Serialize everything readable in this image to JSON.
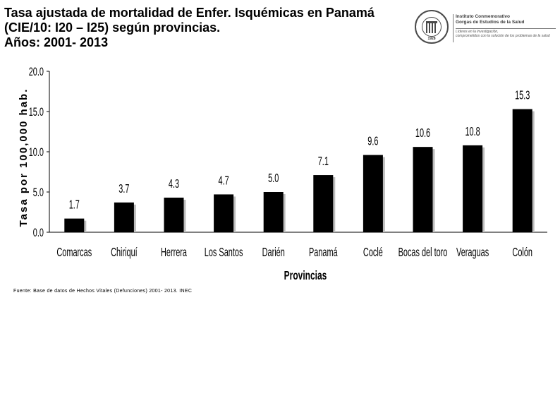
{
  "header": {
    "title_line1": "Tasa ajustada de mortalidad de Enfer. Isquémicas en Panamá",
    "title_line2": "(CIE/10: I20 – I25) según provincias.",
    "title_line3": "Años: 2001- 2013"
  },
  "logo": {
    "name_line1": "Instituto Conmemorativo",
    "name_line2": "Gorgas de Estudios de la Salud",
    "tagline_line1": "Líderes en la investigación,",
    "tagline_line2": "comprometidos con la solución de los problemas de la salud",
    "seal_year": "1928"
  },
  "source": "Fuente: Base de datos de Hechos Vitales (Defunciones) 2001- 2013. INEC",
  "chart_data": {
    "type": "bar",
    "title": "Tasa ajustada de mortalidad de Enfer. Isquémicas en Panamá (CIE/10: I20 – I25) según provincias. Años: 2001- 2013",
    "xlabel": "Provincias",
    "ylabel": "Tasa por 100,000 hab.",
    "categories": [
      "Comarcas",
      "Chiriquí",
      "Herrera",
      "Los Santos",
      "Darién",
      "Panamá",
      "Coclé",
      "Bocas del toro",
      "Veraguas",
      "Colón"
    ],
    "values": [
      1.7,
      3.7,
      4.3,
      4.7,
      5.0,
      7.1,
      9.6,
      10.6,
      10.8,
      15.3
    ],
    "value_labels": [
      "1.7",
      "3.7",
      "4.3",
      "4.7",
      "5.0",
      "7.1",
      "9.6",
      "10.6",
      "10.8",
      "15.3"
    ],
    "ylim": [
      0,
      20
    ],
    "yticks": [
      0,
      5,
      10,
      15,
      20
    ],
    "ytick_labels": [
      "0.0",
      "5.0",
      "10.0",
      "15.0",
      "20.0"
    ],
    "grid": false,
    "legend": "none",
    "bar_color": "#000000",
    "shadow_color": "#bdbdbd"
  }
}
